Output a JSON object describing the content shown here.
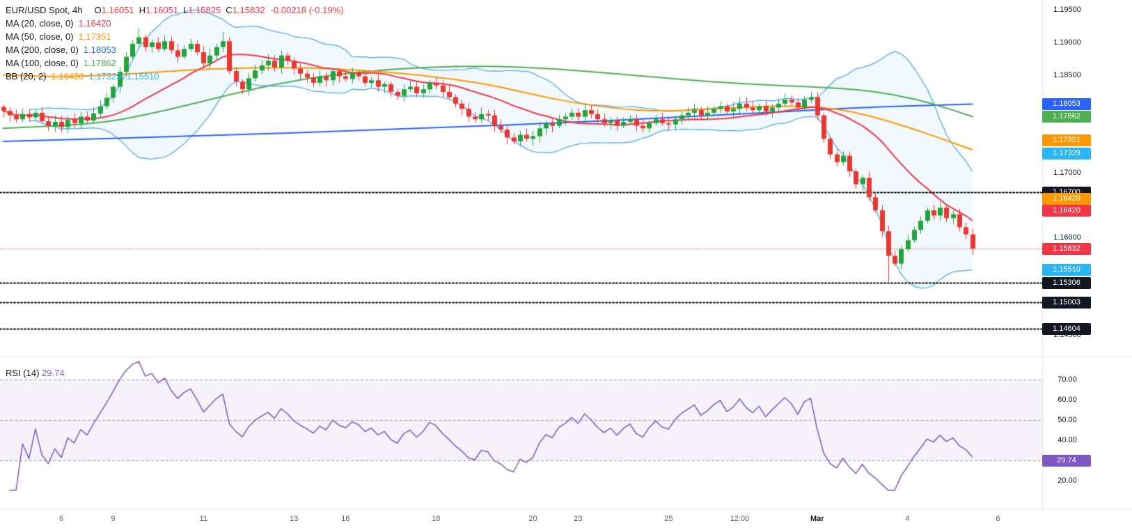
{
  "legend": {
    "symbol": "EUR/USD Spot, 4h",
    "ohlc": {
      "labels": [
        "O",
        "H",
        "L",
        "C"
      ],
      "o": "1.16051",
      "h": "1.16051",
      "l": "1.15825",
      "c": "1.15832",
      "change": "-0.00218 (-0.19%)"
    },
    "indicators": [
      {
        "label": "MA (20, close, 0)",
        "values": [
          {
            "text": "1.16420",
            "color": "#f23645"
          }
        ]
      },
      {
        "label": "MA (50, close, 0)",
        "values": [
          {
            "text": "1.17351",
            "color": "#ff9800"
          }
        ]
      },
      {
        "label": "MA (200, close, 0)",
        "values": [
          {
            "text": "1.18053",
            "color": "#2962ff"
          }
        ]
      },
      {
        "label": "MA (100, close, 0)",
        "values": [
          {
            "text": "1.17862",
            "color": "#4caf50"
          }
        ]
      },
      {
        "label": "BB (20, 2)",
        "values": [
          {
            "text": "1.16420",
            "color": "#ff9800"
          },
          {
            "text": "1.17329",
            "color": "#29b6f6"
          },
          {
            "text": "1.15510",
            "color": "#29b6f6"
          }
        ]
      }
    ],
    "rsi_label": "RSI (14)",
    "rsi_value": "29.74"
  },
  "price_axis": {
    "ticks": [
      {
        "label": "1.19500",
        "price": 1.195
      },
      {
        "label": "1.19000",
        "price": 1.19
      },
      {
        "label": "1.18500",
        "price": 1.185
      },
      {
        "label": "1.17000",
        "price": 1.17
      },
      {
        "label": "1.16000",
        "price": 1.16
      },
      {
        "label": "1.14500",
        "price": 1.145
      }
    ],
    "badges": [
      {
        "label": "1.18053",
        "price": 1.18053,
        "bg": "#2962ff",
        "dy": 0
      },
      {
        "label": "1.17862",
        "price": 1.17862,
        "bg": "#4caf50",
        "dy": 0
      },
      {
        "label": "1.17351",
        "price": 1.17351,
        "bg": "#ff9800",
        "dy": -14
      },
      {
        "label": "1.17329",
        "price": 1.17329,
        "bg": "#29b6f6",
        "dy": 3
      },
      {
        "label": "1.16700",
        "price": 1.167,
        "bg": "#131722",
        "dy": 0
      },
      {
        "label": "1.16420",
        "price": 1.1642,
        "bg": "#ff9800",
        "dy": -17
      },
      {
        "label": "1.16420",
        "price": 1.1642,
        "bg": "#f23645",
        "dy": 0
      },
      {
        "label": "1.15832",
        "price": 1.15832,
        "bg": "#f23645",
        "dy": 0
      },
      {
        "label": "1.15510",
        "price": 1.1551,
        "bg": "#29b6f6",
        "dy": 0
      },
      {
        "label": "1.15306",
        "price": 1.15306,
        "bg": "#131722",
        "dy": 0
      },
      {
        "label": "1.15003",
        "price": 1.15003,
        "bg": "#131722",
        "dy": 0
      },
      {
        "label": "1.14604",
        "price": 1.14604,
        "bg": "#131722",
        "dy": 0
      }
    ]
  },
  "rsi_axis": {
    "ticks": [
      {
        "label": "70.00",
        "value": 70
      },
      {
        "label": "60.00",
        "value": 60
      },
      {
        "label": "50.00",
        "value": 50
      },
      {
        "label": "40.00",
        "value": 40
      },
      {
        "label": "30.00",
        "value": 30
      },
      {
        "label": "20.00",
        "value": 20
      }
    ],
    "badge": {
      "label": "29.74",
      "value": 29.74,
      "bg": "#7e57c2"
    }
  },
  "chart_data": {
    "type": "candlestick",
    "title": "EUR/USD Spot, 4h",
    "last_candle": {
      "open": 1.16051,
      "high": 1.16051,
      "low": 1.15825,
      "close": 1.15832
    },
    "y_range": [
      1.143,
      1.196
    ],
    "closes": [
      1.1795,
      1.1788,
      1.1782,
      1.179,
      1.1785,
      1.1792,
      1.1779,
      1.1772,
      1.1778,
      1.177,
      1.1781,
      1.1776,
      1.1786,
      1.178,
      1.1791,
      1.1802,
      1.1815,
      1.1832,
      1.1855,
      1.1878,
      1.1898,
      1.1908,
      1.1893,
      1.19,
      1.189,
      1.1902,
      1.1888,
      1.1878,
      1.189,
      1.1898,
      1.1885,
      1.1868,
      1.188,
      1.1893,
      1.1902,
      1.1856,
      1.184,
      1.1828,
      1.1845,
      1.1857,
      1.1865,
      1.1872,
      1.1862,
      1.188,
      1.1872,
      1.186,
      1.1852,
      1.1846,
      1.1838,
      1.1848,
      1.1842,
      1.1856,
      1.1848,
      1.1844,
      1.1852,
      1.1848,
      1.1838,
      1.1842,
      1.1832,
      1.1836,
      1.1824,
      1.1818,
      1.1828,
      1.1832,
      1.1822,
      1.1828,
      1.1838,
      1.1834,
      1.1824,
      1.1816,
      1.1806,
      1.1798,
      1.1786,
      1.1782,
      1.179,
      1.1788,
      1.1772,
      1.1766,
      1.1754,
      1.1748,
      1.1758,
      1.1752,
      1.1756,
      1.1768,
      1.1776,
      1.1772,
      1.1782,
      1.1786,
      1.1792,
      1.1786,
      1.1796,
      1.179,
      1.1782,
      1.1776,
      1.178,
      1.1772,
      1.1778,
      1.1782,
      1.1772,
      1.1768,
      1.1776,
      1.1782,
      1.1776,
      1.1774,
      1.1782,
      1.1788,
      1.1792,
      1.1796,
      1.1788,
      1.1792,
      1.1798,
      1.1802,
      1.1794,
      1.1798,
      1.1806,
      1.18,
      1.1796,
      1.1802,
      1.1794,
      1.18,
      1.1806,
      1.1812,
      1.1808,
      1.18,
      1.1812,
      1.1816,
      1.1788,
      1.1752,
      1.1728,
      1.1716,
      1.1726,
      1.1702,
      1.1682,
      1.1692,
      1.1662,
      1.1642,
      1.161,
      1.1572,
      1.156,
      1.1582,
      1.1596,
      1.1612,
      1.1626,
      1.1642,
      1.1634,
      1.1646,
      1.163,
      1.1636,
      1.1616,
      1.1605,
      1.15832
    ],
    "wick_highs": {
      "21": 1.1922,
      "34": 1.1916
    },
    "wick_lows": {
      "137": 1.153
    },
    "overlays": {
      "ma20_period": 20,
      "bb_period": 20,
      "bb_mult": 2,
      "ma50": [
        [
          0,
          1.185
        ],
        [
          10,
          1.1847
        ],
        [
          20,
          1.1852
        ],
        [
          32,
          1.186
        ],
        [
          45,
          1.1862
        ],
        [
          55,
          1.1858
        ],
        [
          65,
          1.185
        ],
        [
          75,
          1.1836
        ],
        [
          82,
          1.182
        ],
        [
          88,
          1.1808
        ],
        [
          95,
          1.1798
        ],
        [
          102,
          1.1794
        ],
        [
          110,
          1.1798
        ],
        [
          120,
          1.1803
        ],
        [
          128,
          1.18
        ],
        [
          134,
          1.1788
        ],
        [
          140,
          1.177
        ],
        [
          145,
          1.1753
        ],
        [
          150,
          1.17351
        ]
      ],
      "ma100": [
        [
          0,
          1.1768
        ],
        [
          15,
          1.1775
        ],
        [
          25,
          1.1795
        ],
        [
          35,
          1.182
        ],
        [
          45,
          1.1842
        ],
        [
          55,
          1.1855
        ],
        [
          65,
          1.1862
        ],
        [
          75,
          1.1864
        ],
        [
          85,
          1.186
        ],
        [
          95,
          1.1852
        ],
        [
          105,
          1.1843
        ],
        [
          115,
          1.1836
        ],
        [
          125,
          1.1832
        ],
        [
          132,
          1.1828
        ],
        [
          138,
          1.182
        ],
        [
          144,
          1.1806
        ],
        [
          150,
          1.17862
        ]
      ],
      "ma200": [
        [
          0,
          1.1748
        ],
        [
          30,
          1.1756
        ],
        [
          60,
          1.1766
        ],
        [
          90,
          1.1778
        ],
        [
          110,
          1.1788
        ],
        [
          125,
          1.1796
        ],
        [
          135,
          1.1801
        ],
        [
          150,
          1.18053
        ]
      ]
    },
    "levels": [
      1.167,
      1.15306,
      1.15003,
      1.14604
    ],
    "current_price": 1.15832,
    "rsi": {
      "period": 14,
      "last": 29.74,
      "guides": [
        70,
        50,
        30
      ],
      "range": [
        15,
        80
      ]
    },
    "time_ticks": [
      {
        "label": "6",
        "i": 9
      },
      {
        "label": "9",
        "i": 17
      },
      {
        "label": "11",
        "i": 31
      },
      {
        "label": "13",
        "i": 45
      },
      {
        "label": "16",
        "i": 53
      },
      {
        "label": "18",
        "i": 67
      },
      {
        "label": "20",
        "i": 82
      },
      {
        "label": "23",
        "i": 89
      },
      {
        "label": "25",
        "i": 103
      },
      {
        "label": "12:00",
        "i": 114
      },
      {
        "label": "Mar",
        "i": 126
      },
      {
        "label": "4",
        "i": 140
      },
      {
        "label": "6",
        "i": 154
      }
    ]
  },
  "colors": {
    "up": "#23a33b",
    "down": "#e8382f",
    "ma20": "#f23645",
    "ma50": "#ff9800",
    "ma100": "#4caf50",
    "ma200": "#2962ff",
    "bb_line": "#42a5f5",
    "bb_fill": "rgba(66,165,245,0.07)",
    "level_line": "#000000",
    "current_line": "#f23645",
    "rsi_line": "#7e57c2",
    "rsi_fill": "rgba(126,87,194,0.08)",
    "rsi_guide": "#9b93c0",
    "separator": "#e0e3eb",
    "axis_text": "#131722"
  }
}
